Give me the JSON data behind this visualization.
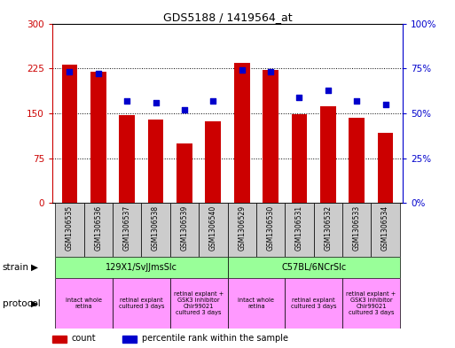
{
  "title": "GDS5188 / 1419564_at",
  "samples": [
    "GSM1306535",
    "GSM1306536",
    "GSM1306537",
    "GSM1306538",
    "GSM1306539",
    "GSM1306540",
    "GSM1306529",
    "GSM1306530",
    "GSM1306531",
    "GSM1306532",
    "GSM1306533",
    "GSM1306534"
  ],
  "counts": [
    232,
    220,
    147,
    140,
    100,
    137,
    235,
    222,
    148,
    162,
    142,
    118
  ],
  "percentiles": [
    73,
    72,
    57,
    56,
    52,
    57,
    74,
    73,
    59,
    63,
    57,
    55
  ],
  "bar_color": "#cc0000",
  "dot_color": "#0000cc",
  "left_ylim": [
    0,
    300
  ],
  "right_ylim": [
    0,
    100
  ],
  "left_yticks": [
    0,
    75,
    150,
    225,
    300
  ],
  "right_yticks": [
    0,
    25,
    50,
    75,
    100
  ],
  "left_yticklabels": [
    "0",
    "75",
    "150",
    "225",
    "300"
  ],
  "right_yticklabels": [
    "0%",
    "25%",
    "50%",
    "75%",
    "100%"
  ],
  "strain_labels": [
    "129X1/SvJJmsSlc",
    "C57BL/6NCrSlc"
  ],
  "strain_ranges": [
    [
      0,
      5
    ],
    [
      6,
      11
    ]
  ],
  "strain_color": "#99ff99",
  "protocol_labels": [
    "intact whole\nretina",
    "retinal explant\ncultured 3 days",
    "retinal explant +\nGSK3 inhibitor\nChir99021\ncultured 3 days",
    "intact whole\nretina",
    "retinal explant\ncultured 3 days",
    "retinal explant +\nGSK3 inhibitor\nChir99021\ncultured 3 days"
  ],
  "protocol_ranges": [
    [
      0,
      1
    ],
    [
      2,
      3
    ],
    [
      4,
      5
    ],
    [
      6,
      7
    ],
    [
      8,
      9
    ],
    [
      10,
      11
    ]
  ],
  "protocol_color": "#ff99ff",
  "legend_count_color": "#cc0000",
  "legend_dot_color": "#0000cc",
  "bar_width": 0.55,
  "grid_color": "black",
  "bg_color": "white",
  "plot_bg": "white",
  "sample_bg": "#cccccc"
}
